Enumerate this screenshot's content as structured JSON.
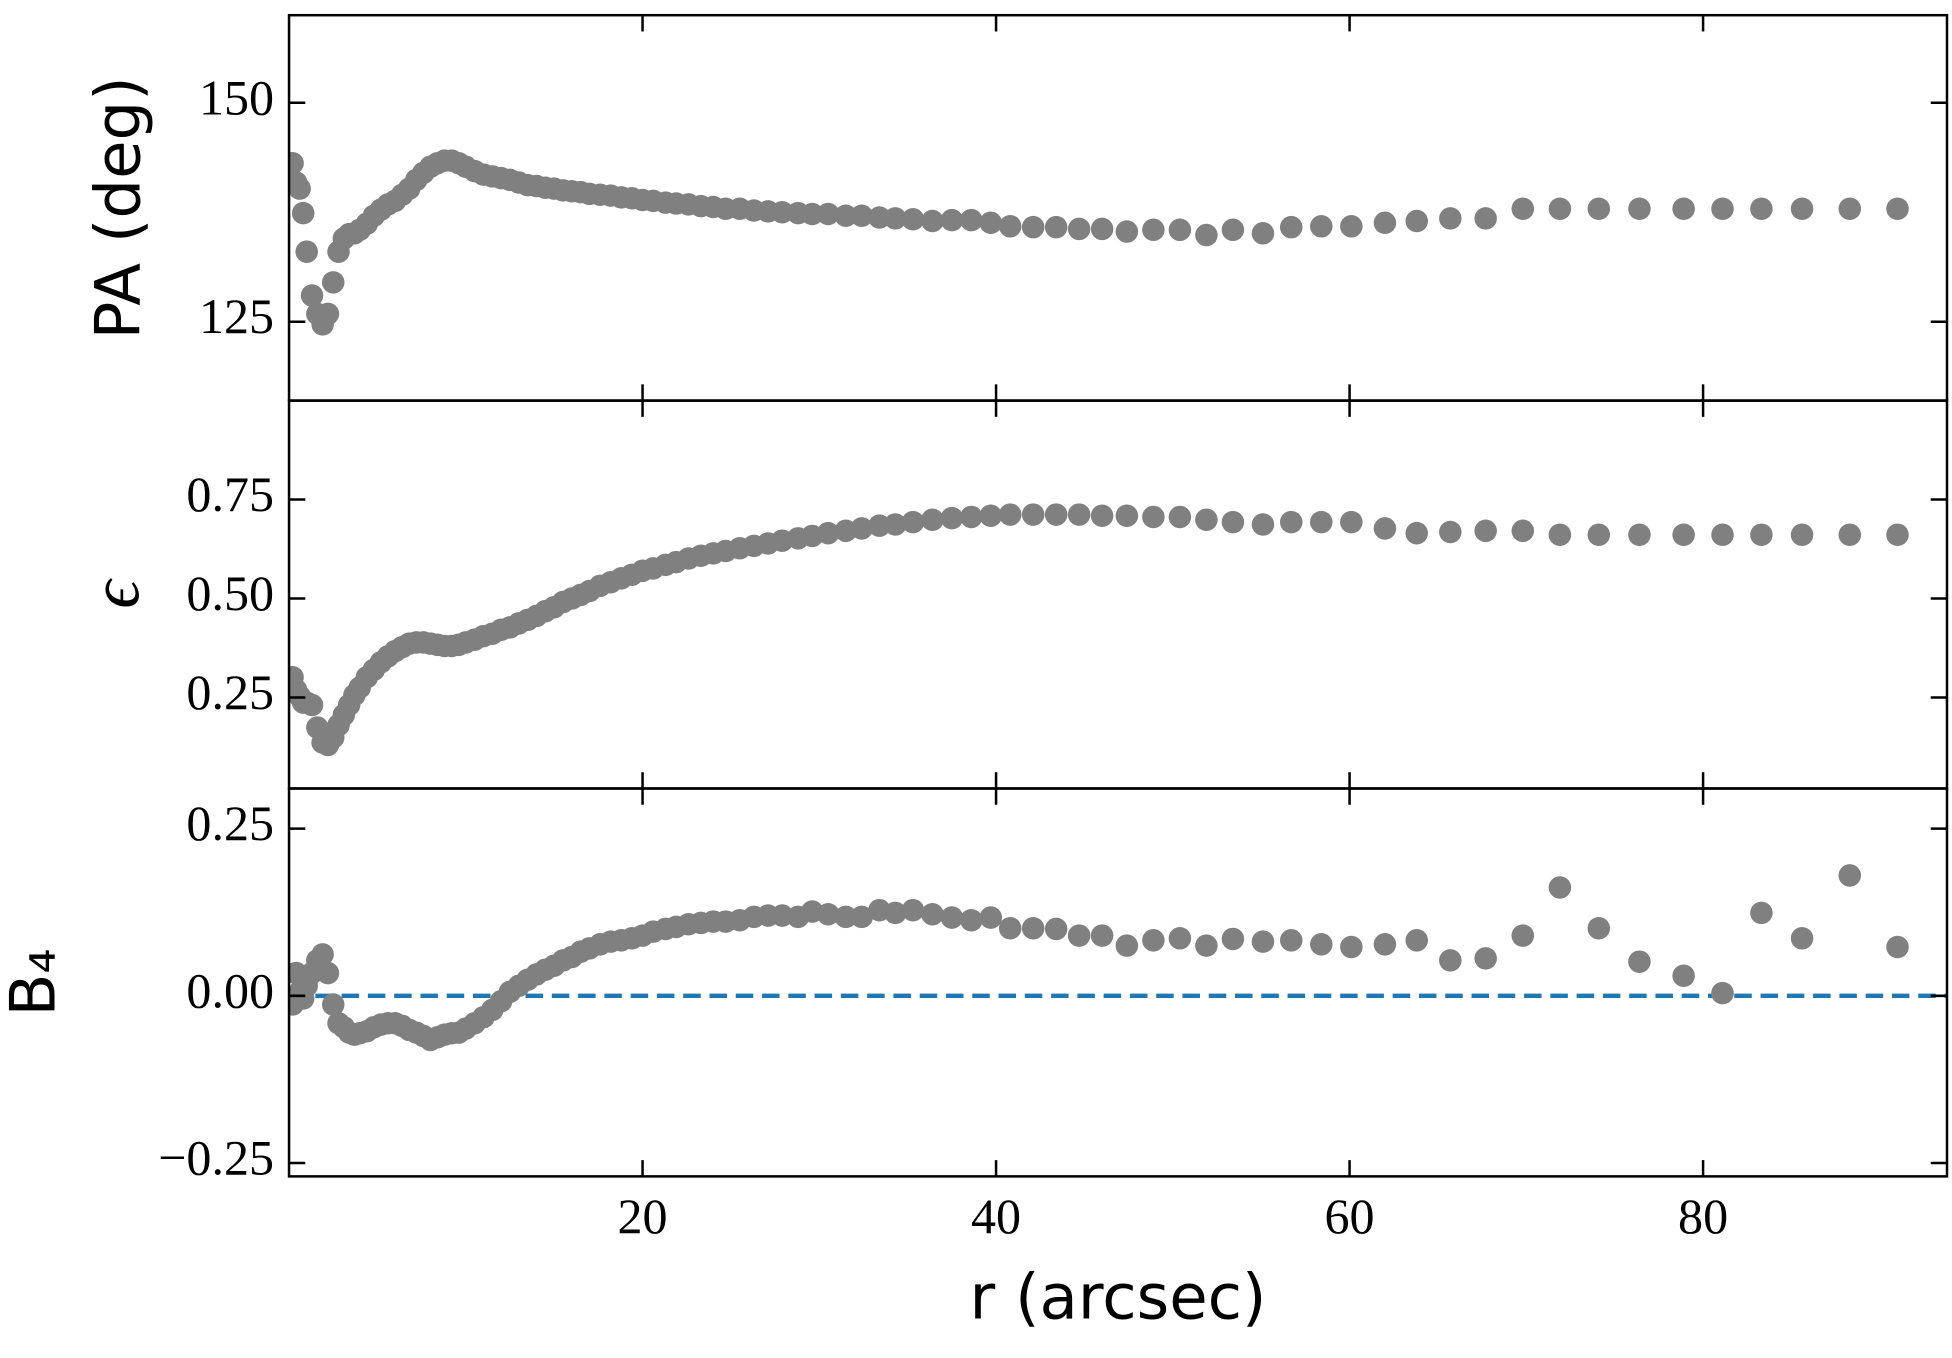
{
  "chart_data": [
    {
      "type": "scatter",
      "ylabel": "PA (deg)",
      "color": "#808080",
      "x": [
        0.2,
        0.4,
        0.6,
        0.8,
        1.0,
        1.3,
        1.6,
        1.9,
        2.2,
        2.5,
        2.8,
        3.1,
        3.4,
        3.7,
        4.0,
        4.4,
        4.8,
        5.2,
        5.6,
        6.0,
        6.4,
        6.8,
        7.2,
        7.6,
        8.0,
        8.4,
        8.8,
        9.2,
        9.6,
        10.0,
        10.5,
        11.0,
        11.5,
        12.0,
        12.5,
        13.0,
        13.5,
        14.0,
        14.5,
        15.0,
        15.5,
        16.0,
        16.5,
        17.0,
        17.6,
        18.2,
        18.8,
        19.4,
        20.0,
        20.6,
        21.3,
        21.9,
        22.6,
        23.3,
        24.0,
        24.7,
        25.5,
        26.3,
        27.1,
        27.9,
        28.8,
        29.6,
        30.5,
        31.5,
        32.4,
        33.4,
        34.3,
        35.3,
        36.4,
        37.5,
        38.6,
        39.7,
        40.8,
        42.1,
        43.4,
        44.7,
        46.0,
        47.4,
        48.9,
        50.4,
        51.9,
        53.4,
        55.1,
        56.7,
        58.4,
        60.1,
        62.0,
        63.8,
        65.7,
        67.7,
        69.8,
        71.9,
        74.1,
        76.4,
        78.9,
        81.1,
        83.3,
        85.6,
        88.3,
        91.0
      ],
      "values": [
        143.1,
        140.9,
        140.2,
        137.4,
        133.0,
        128.0,
        125.9,
        124.7,
        125.9,
        129.5,
        133.0,
        134.5,
        135.0,
        135.1,
        135.5,
        136.2,
        137.1,
        137.8,
        138.4,
        138.8,
        139.5,
        140.2,
        141.2,
        142.0,
        142.7,
        143.1,
        143.4,
        143.4,
        143.1,
        142.7,
        142.2,
        141.8,
        141.6,
        141.4,
        141.2,
        140.9,
        140.6,
        140.5,
        140.3,
        140.2,
        140.0,
        139.9,
        139.8,
        139.6,
        139.5,
        139.4,
        139.2,
        139.1,
        138.9,
        138.8,
        138.6,
        138.5,
        138.4,
        138.2,
        138.1,
        137.9,
        137.9,
        137.7,
        137.6,
        137.5,
        137.4,
        137.3,
        137.3,
        137.1,
        137.1,
        136.9,
        136.8,
        136.7,
        136.5,
        136.6,
        136.6,
        136.3,
        135.9,
        135.8,
        135.8,
        135.6,
        135.6,
        135.3,
        135.5,
        135.5,
        134.9,
        135.5,
        135.1,
        135.8,
        135.9,
        135.9,
        136.3,
        136.5,
        136.8,
        136.8,
        137.9,
        137.9,
        137.9,
        137.9,
        137.9,
        137.9,
        137.9,
        137.9,
        137.9,
        137.9
      ],
      "xlim": [
        0,
        93.8
      ],
      "ylim": [
        116,
        160
      ],
      "yticks": [
        125,
        150
      ]
    },
    {
      "type": "scatter",
      "ylabel": "ϵ",
      "color": "#808080",
      "x": [
        0.2,
        0.4,
        0.6,
        0.8,
        1.0,
        1.3,
        1.6,
        1.9,
        2.2,
        2.5,
        2.8,
        3.1,
        3.4,
        3.7,
        4.0,
        4.4,
        4.8,
        5.2,
        5.6,
        6.0,
        6.4,
        6.8,
        7.2,
        7.6,
        8.0,
        8.4,
        8.8,
        9.2,
        9.6,
        10.0,
        10.5,
        11.0,
        11.5,
        12.0,
        12.5,
        13.0,
        13.5,
        14.0,
        14.5,
        15.0,
        15.5,
        16.0,
        16.5,
        17.0,
        17.6,
        18.2,
        18.8,
        19.4,
        20.0,
        20.6,
        21.3,
        21.9,
        22.6,
        23.3,
        24.0,
        24.7,
        25.5,
        26.3,
        27.1,
        27.9,
        28.8,
        29.6,
        30.5,
        31.5,
        32.4,
        33.4,
        34.3,
        35.3,
        36.4,
        37.5,
        38.6,
        39.7,
        40.8,
        42.1,
        43.4,
        44.7,
        46.0,
        47.4,
        48.9,
        50.4,
        51.9,
        53.4,
        55.1,
        56.7,
        58.4,
        60.1,
        62.0,
        63.8,
        65.7,
        67.7,
        69.8,
        71.9,
        74.1,
        76.4,
        78.9,
        81.1,
        83.3,
        85.6,
        88.3,
        91.0
      ],
      "values": [
        0.301,
        0.269,
        0.253,
        0.237,
        0.237,
        0.231,
        0.174,
        0.136,
        0.13,
        0.149,
        0.18,
        0.206,
        0.231,
        0.256,
        0.275,
        0.301,
        0.32,
        0.339,
        0.354,
        0.367,
        0.377,
        0.386,
        0.389,
        0.389,
        0.386,
        0.383,
        0.38,
        0.38,
        0.383,
        0.389,
        0.396,
        0.405,
        0.411,
        0.421,
        0.427,
        0.437,
        0.446,
        0.456,
        0.468,
        0.478,
        0.491,
        0.5,
        0.509,
        0.519,
        0.532,
        0.541,
        0.551,
        0.56,
        0.57,
        0.576,
        0.585,
        0.592,
        0.601,
        0.608,
        0.614,
        0.62,
        0.627,
        0.633,
        0.639,
        0.646,
        0.652,
        0.658,
        0.665,
        0.671,
        0.677,
        0.684,
        0.687,
        0.693,
        0.699,
        0.703,
        0.706,
        0.709,
        0.712,
        0.712,
        0.712,
        0.712,
        0.709,
        0.709,
        0.706,
        0.706,
        0.699,
        0.693,
        0.687,
        0.693,
        0.693,
        0.693,
        0.677,
        0.665,
        0.668,
        0.671,
        0.671,
        0.661,
        0.661,
        0.661,
        0.661,
        0.661,
        0.661,
        0.661,
        0.661,
        0.661
      ],
      "xlim": [
        0,
        93.8
      ],
      "ylim": [
        0.02,
        1.0
      ],
      "yticks": [
        0.25,
        {
          "value": 0.5,
          "label": "0.50"
        },
        0.75
      ]
    },
    {
      "type": "scatter",
      "ylabel": "B₄",
      "xlabel": "r (arcsec)",
      "color": "#808080",
      "x": [
        0.2,
        0.4,
        0.6,
        0.8,
        1.0,
        1.3,
        1.6,
        1.9,
        2.2,
        2.5,
        2.8,
        3.1,
        3.4,
        3.7,
        4.0,
        4.4,
        4.8,
        5.2,
        5.6,
        6.0,
        6.4,
        6.8,
        7.2,
        7.6,
        8.0,
        8.4,
        8.8,
        9.2,
        9.6,
        10.0,
        10.5,
        11.0,
        11.5,
        12.0,
        12.5,
        13.0,
        13.5,
        14.0,
        14.5,
        15.0,
        15.5,
        16.0,
        16.5,
        17.0,
        17.6,
        18.2,
        18.8,
        19.4,
        20.0,
        20.6,
        21.3,
        21.9,
        22.6,
        23.3,
        24.0,
        24.7,
        25.5,
        26.3,
        27.1,
        27.9,
        28.8,
        29.6,
        30.5,
        31.5,
        32.4,
        33.4,
        34.3,
        35.3,
        36.4,
        37.5,
        38.6,
        39.7,
        40.8,
        42.1,
        43.4,
        44.7,
        46.0,
        47.4,
        48.9,
        50.4,
        51.9,
        53.4,
        55.1,
        56.7,
        58.4,
        60.1,
        62.0,
        63.8,
        65.7,
        67.7,
        69.8,
        71.9,
        74.1,
        76.4,
        78.9,
        81.1,
        83.3,
        85.6,
        88.3,
        91.0
      ],
      "values": [
        -0.013,
        0.034,
        0.006,
        -0.004,
        0.015,
        0.034,
        0.053,
        0.062,
        0.034,
        -0.013,
        -0.041,
        -0.047,
        -0.055,
        -0.058,
        -0.056,
        -0.053,
        -0.047,
        -0.043,
        -0.041,
        -0.041,
        -0.045,
        -0.051,
        -0.055,
        -0.06,
        -0.066,
        -0.062,
        -0.058,
        -0.056,
        -0.055,
        -0.049,
        -0.041,
        -0.032,
        -0.021,
        -0.008,
        0.006,
        0.015,
        0.024,
        0.032,
        0.039,
        0.045,
        0.053,
        0.058,
        0.066,
        0.071,
        0.077,
        0.081,
        0.083,
        0.086,
        0.09,
        0.096,
        0.1,
        0.103,
        0.107,
        0.109,
        0.111,
        0.111,
        0.113,
        0.118,
        0.12,
        0.12,
        0.118,
        0.126,
        0.122,
        0.118,
        0.118,
        0.128,
        0.124,
        0.128,
        0.122,
        0.117,
        0.113,
        0.117,
        0.101,
        0.101,
        0.1,
        0.09,
        0.09,
        0.075,
        0.083,
        0.086,
        0.075,
        0.085,
        0.081,
        0.083,
        0.077,
        0.073,
        0.077,
        0.083,
        0.053,
        0.056,
        0.09,
        0.162,
        0.101,
        0.051,
        0.03,
        0.004,
        0.124,
        0.086,
        0.18,
        0.073
      ],
      "xlim": [
        0,
        93.8
      ],
      "ylim": [
        -0.27,
        0.31
      ],
      "yticks": [
        {
          "value": -0.25,
          "label": "−0.25"
        },
        {
          "value": 0,
          "label": "0.00"
        },
        0.25
      ],
      "xticks": [
        20,
        40,
        60,
        80
      ],
      "hline": 0,
      "hline_color": "#1f77b4"
    }
  ]
}
